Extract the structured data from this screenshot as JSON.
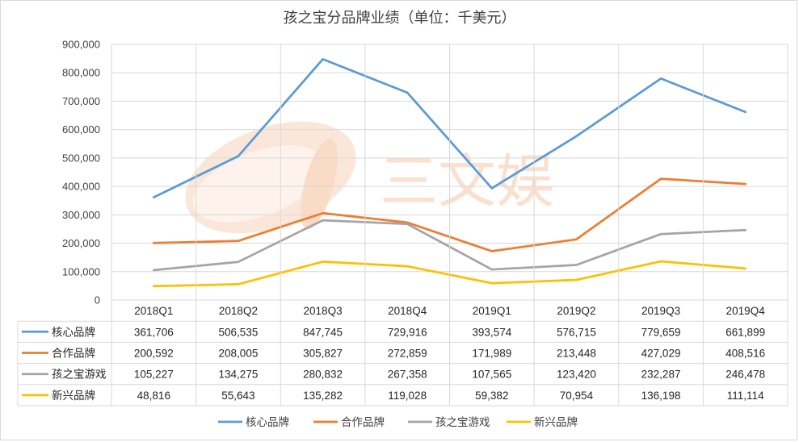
{
  "chart_data": {
    "type": "line",
    "title": "孩之宝分品牌业绩（单位：千美元）",
    "categories": [
      "2018Q1",
      "2018Q2",
      "2018Q3",
      "2018Q4",
      "2019Q1",
      "2019Q2",
      "2019Q3",
      "2019Q4"
    ],
    "ylim": [
      0,
      900000
    ],
    "yticks": [
      0,
      100000,
      200000,
      300000,
      400000,
      500000,
      600000,
      700000,
      800000,
      900000
    ],
    "ytick_labels": [
      "0",
      "100,000",
      "200,000",
      "300,000",
      "400,000",
      "500,000",
      "600,000",
      "700,000",
      "800,000",
      "900,000"
    ],
    "grid": true,
    "legend_position": "bottom",
    "data_table": true,
    "series": [
      {
        "name": "核心品牌",
        "color": "#5b9bd5",
        "values": [
          361706,
          506535,
          847745,
          729916,
          393574,
          576715,
          779659,
          661899
        ],
        "labels": [
          "361,706",
          "506,535",
          "847,745",
          "729,916",
          "393,574",
          "576,715",
          "779,659",
          "661,899"
        ]
      },
      {
        "name": "合作品牌",
        "color": "#ed7d31",
        "values": [
          200592,
          208005,
          305827,
          272859,
          171989,
          213448,
          427029,
          408516
        ],
        "labels": [
          "200,592",
          "208,005",
          "305,827",
          "272,859",
          "171,989",
          "213,448",
          "427,029",
          "408,516"
        ]
      },
      {
        "name": "孩之宝游戏",
        "color": "#a5a5a5",
        "values": [
          105227,
          134275,
          280832,
          267358,
          107565,
          123420,
          232287,
          246478
        ],
        "labels": [
          "105,227",
          "134,275",
          "280,832",
          "267,358",
          "107,565",
          "123,420",
          "232,287",
          "246,478"
        ]
      },
      {
        "name": "新兴品牌",
        "color": "#ffc000",
        "values": [
          48816,
          55643,
          135282,
          119028,
          59382,
          70954,
          136198,
          111114
        ],
        "labels": [
          "48,816",
          "55,643",
          "135,282",
          "119,028",
          "59,382",
          "70,954",
          "136,198",
          "111,114"
        ]
      }
    ]
  },
  "watermark": {
    "text": "三文娱",
    "color": "#f4b183"
  }
}
